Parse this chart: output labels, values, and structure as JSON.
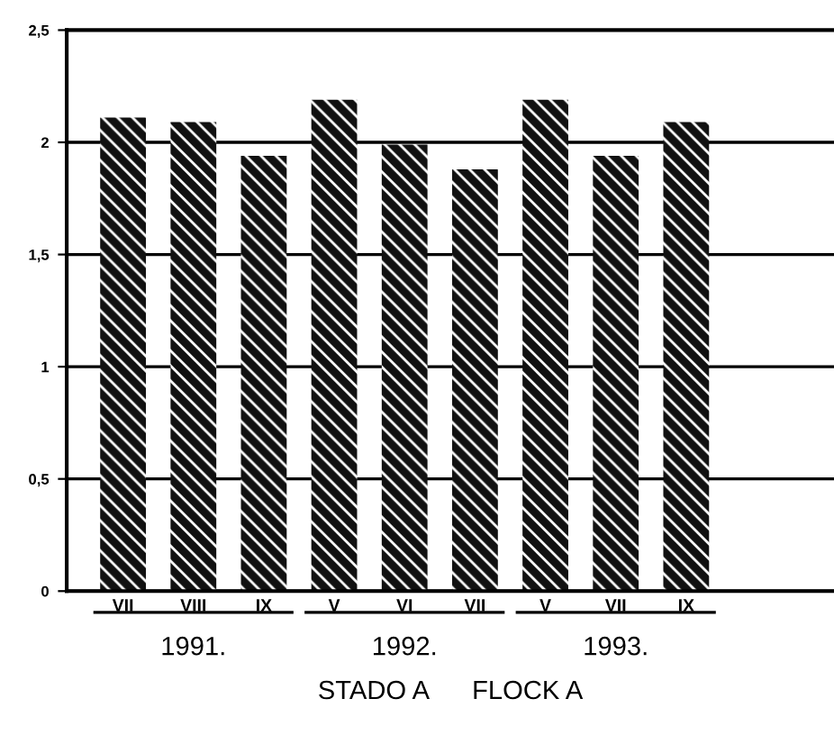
{
  "chart_data": {
    "type": "bar",
    "categories": [
      "VII",
      "VIII",
      "IX",
      "V",
      "VI",
      "VII",
      "V",
      "VII",
      "IX"
    ],
    "values": [
      2.11,
      2.09,
      1.94,
      2.19,
      1.99,
      1.88,
      2.19,
      1.94,
      2.09
    ],
    "color": "#111111",
    "ylim": [
      0,
      2.5
    ],
    "yticks": [
      0,
      {
        "value": 0.5,
        "label": "0,5"
      },
      1,
      {
        "value": 1.5,
        "label": "1,5"
      },
      2,
      {
        "value": 2.5,
        "label": "2,5"
      }
    ],
    "grid": "y",
    "xlabel": "STADO A      FLOCK A",
    "annotations": [
      "1991.",
      "1992.",
      "1993."
    ]
  }
}
